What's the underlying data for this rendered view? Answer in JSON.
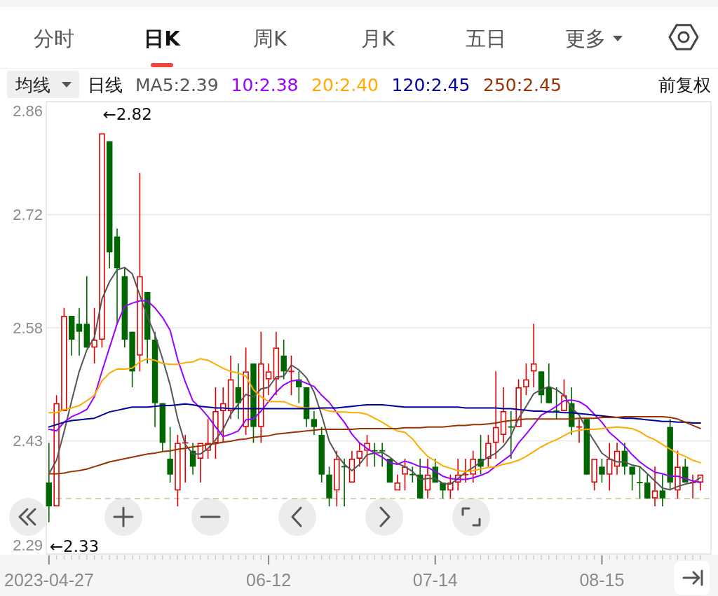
{
  "chart_data": {
    "type": "candlestick",
    "categories": [
      "2023-04-27",
      null,
      null,
      null,
      null,
      null,
      null,
      null,
      null,
      null,
      null,
      null,
      null,
      null,
      null,
      null,
      null,
      null,
      null,
      null,
      null,
      null,
      null,
      null,
      null,
      null,
      null,
      null,
      null,
      "06-12",
      null,
      null,
      null,
      null,
      null,
      null,
      null,
      null,
      null,
      null,
      null,
      null,
      null,
      null,
      null,
      null,
      null,
      null,
      null,
      null,
      null,
      "07-14",
      null,
      null,
      null,
      null,
      null,
      null,
      null,
      null,
      null,
      null,
      null,
      null,
      null,
      null,
      null,
      null,
      null,
      null,
      null,
      null,
      null,
      "08-15",
      null,
      null,
      null,
      null,
      null,
      null,
      null,
      null,
      null,
      null,
      null,
      null,
      null
    ],
    "ohlc": [
      [
        2.38,
        2.43,
        2.33,
        2.35
      ],
      [
        2.35,
        2.49,
        2.35,
        2.48
      ],
      [
        2.47,
        2.6,
        2.47,
        2.59
      ],
      [
        2.59,
        2.59,
        2.54,
        2.56
      ],
      [
        2.58,
        2.6,
        2.54,
        2.57
      ],
      [
        2.58,
        2.64,
        2.55,
        2.55
      ],
      [
        2.55,
        2.6,
        2.53,
        2.56
      ],
      [
        2.56,
        2.82,
        2.55,
        2.82
      ],
      [
        2.81,
        2.81,
        2.65,
        2.67
      ],
      [
        2.69,
        2.7,
        2.58,
        2.65
      ],
      [
        2.64,
        2.65,
        2.55,
        2.56
      ],
      [
        2.57,
        2.57,
        2.5,
        2.52
      ],
      [
        2.54,
        2.77,
        2.52,
        2.64
      ],
      [
        2.62,
        2.62,
        2.53,
        2.56
      ],
      [
        2.56,
        2.57,
        2.45,
        2.48
      ],
      [
        2.48,
        2.48,
        2.42,
        2.43
      ],
      [
        2.41,
        2.45,
        2.38,
        2.39
      ],
      [
        2.37,
        2.44,
        2.35,
        2.43
      ],
      [
        2.43,
        2.44,
        2.38,
        2.43
      ],
      [
        2.42,
        2.43,
        2.39,
        2.4
      ],
      [
        2.41,
        2.43,
        2.38,
        2.43
      ],
      [
        2.42,
        2.46,
        2.41,
        2.43
      ],
      [
        2.43,
        2.5,
        2.41,
        2.47
      ],
      [
        2.47,
        2.5,
        2.43,
        2.48
      ],
      [
        2.47,
        2.54,
        2.46,
        2.51
      ],
      [
        2.5,
        2.53,
        2.46,
        2.48
      ],
      [
        2.45,
        2.55,
        2.44,
        2.52
      ],
      [
        2.53,
        2.53,
        2.43,
        2.45
      ],
      [
        2.45,
        2.57,
        2.43,
        2.53
      ],
      [
        2.51,
        2.53,
        2.49,
        2.52
      ],
      [
        2.51,
        2.57,
        2.49,
        2.55
      ],
      [
        2.54,
        2.56,
        2.51,
        2.52
      ],
      [
        2.52,
        2.54,
        2.49,
        2.52
      ],
      [
        2.51,
        2.52,
        2.48,
        2.5
      ],
      [
        2.5,
        2.5,
        2.45,
        2.46
      ],
      [
        2.46,
        2.47,
        2.44,
        2.45
      ],
      [
        2.44,
        2.45,
        2.38,
        2.39
      ],
      [
        2.39,
        2.4,
        2.35,
        2.36
      ],
      [
        2.37,
        2.42,
        2.35,
        2.41
      ],
      [
        2.4,
        2.41,
        2.35,
        2.4
      ],
      [
        2.38,
        2.42,
        2.38,
        2.41
      ],
      [
        2.41,
        2.43,
        2.4,
        2.42
      ],
      [
        2.42,
        2.44,
        2.4,
        2.43
      ],
      [
        2.42,
        2.43,
        2.4,
        2.42
      ],
      [
        2.42,
        2.43,
        2.4,
        2.42
      ],
      [
        2.41,
        2.41,
        2.38,
        2.38
      ],
      [
        2.37,
        2.39,
        2.37,
        2.38
      ],
      [
        2.39,
        2.41,
        2.37,
        2.4
      ],
      [
        2.39,
        2.4,
        2.38,
        2.39
      ],
      [
        2.39,
        2.41,
        2.36,
        2.36
      ],
      [
        2.37,
        2.41,
        2.36,
        2.39
      ],
      [
        2.4,
        2.41,
        2.38,
        2.38
      ],
      [
        2.38,
        2.38,
        2.36,
        2.37
      ],
      [
        2.37,
        2.39,
        2.36,
        2.38
      ],
      [
        2.38,
        2.41,
        2.37,
        2.39
      ],
      [
        2.39,
        2.41,
        2.38,
        2.39
      ],
      [
        2.39,
        2.42,
        2.38,
        2.41
      ],
      [
        2.41,
        2.44,
        2.39,
        2.4
      ],
      [
        2.41,
        2.44,
        2.4,
        2.43
      ],
      [
        2.43,
        2.52,
        2.41,
        2.45
      ],
      [
        2.44,
        2.5,
        2.43,
        2.47
      ],
      [
        2.45,
        2.47,
        2.41,
        2.45
      ],
      [
        2.45,
        2.51,
        2.45,
        2.5
      ],
      [
        2.5,
        2.53,
        2.49,
        2.51
      ],
      [
        2.52,
        2.58,
        2.5,
        2.53
      ],
      [
        2.52,
        2.52,
        2.48,
        2.49
      ],
      [
        2.5,
        2.53,
        2.48,
        2.48
      ],
      [
        2.47,
        2.5,
        2.46,
        2.47
      ],
      [
        2.47,
        2.51,
        2.47,
        2.49
      ],
      [
        2.48,
        2.5,
        2.44,
        2.45
      ],
      [
        2.45,
        2.46,
        2.43,
        2.45
      ],
      [
        2.46,
        2.46,
        2.39,
        2.39
      ],
      [
        2.38,
        2.41,
        2.37,
        2.41
      ],
      [
        2.4,
        2.41,
        2.38,
        2.39
      ],
      [
        2.39,
        2.43,
        2.37,
        2.41
      ],
      [
        2.4,
        2.43,
        2.39,
        2.42
      ],
      [
        2.42,
        2.43,
        2.39,
        2.4
      ],
      [
        2.4,
        2.4,
        2.37,
        2.39
      ],
      [
        2.38,
        2.4,
        2.36,
        2.38
      ],
      [
        2.38,
        2.39,
        2.36,
        2.36
      ],
      [
        2.36,
        2.4,
        2.35,
        2.37
      ],
      [
        2.37,
        2.39,
        2.35,
        2.36
      ],
      [
        2.45,
        2.46,
        2.37,
        2.38
      ],
      [
        2.37,
        2.42,
        2.36,
        2.4
      ],
      [
        2.4,
        2.41,
        2.38,
        2.38
      ],
      [
        2.38,
        2.39,
        2.36,
        2.38
      ],
      [
        2.38,
        2.39,
        2.37,
        2.39
      ]
    ],
    "colors": [
      "#006600",
      "#dd0000",
      "#dd0000",
      "#006600",
      "#006600",
      "#006600",
      "#dd0000",
      "#dd0000",
      "#006600",
      "#006600",
      "#006600",
      "#006600",
      "#dd0000",
      "#006600",
      "#006600",
      "#006600",
      "#006600",
      "#dd0000",
      "#dd0000",
      "#006600",
      "#dd0000",
      "#dd0000",
      "#dd0000",
      "#dd0000",
      "#dd0000",
      "#006600",
      "#dd0000",
      "#006600",
      "#dd0000",
      "#dd0000",
      "#dd0000",
      "#006600",
      "#dd0000",
      "#006600",
      "#006600",
      "#006600",
      "#006600",
      "#006600",
      "#dd0000",
      "#006600",
      "#dd0000",
      "#dd0000",
      "#dd0000",
      "#006600",
      "#006600",
      "#006600",
      "#dd0000",
      "#dd0000",
      "#006600",
      "#006600",
      "#dd0000",
      "#006600",
      "#006600",
      "#dd0000",
      "#dd0000",
      "#dd0000",
      "#dd0000",
      "#006600",
      "#dd0000",
      "#dd0000",
      "#dd0000",
      "#006600",
      "#dd0000",
      "#dd0000",
      "#dd0000",
      "#006600",
      "#006600",
      "#006600",
      "#dd0000",
      "#006600",
      "#dd0000",
      "#006600",
      "#dd0000",
      "#006600",
      "#dd0000",
      "#dd0000",
      "#006600",
      "#006600",
      "#006600",
      "#006600",
      "#dd0000",
      "#006600",
      "#006600",
      "#dd0000",
      "#006600",
      "#dd0000",
      "#dd0000"
    ],
    "series": [
      {
        "type": "line",
        "name": "MA5:2.39",
        "color": "#555555",
        "values": [
          2.391,
          2.408,
          2.444,
          2.483,
          2.52,
          2.547,
          2.563,
          2.611,
          2.633,
          2.648,
          2.651,
          2.643,
          2.616,
          2.589,
          2.566,
          2.536,
          2.503,
          2.46,
          2.428,
          2.416,
          2.416,
          2.423,
          2.434,
          2.447,
          2.466,
          2.479,
          2.491,
          2.488,
          2.498,
          2.5,
          2.513,
          2.514,
          2.528,
          2.522,
          2.512,
          2.494,
          2.465,
          2.432,
          2.415,
          2.403,
          2.395,
          2.403,
          2.415,
          2.417,
          2.418,
          2.412,
          2.404,
          2.4,
          2.394,
          2.384,
          2.385,
          2.385,
          2.379,
          2.378,
          2.385,
          2.393,
          2.399,
          2.406,
          2.412,
          2.417,
          2.426,
          2.439,
          2.461,
          2.476,
          2.492,
          2.497,
          2.501,
          2.497,
          2.49,
          2.474,
          2.465,
          2.447,
          2.432,
          2.417,
          2.41,
          2.406,
          2.406,
          2.402,
          2.4,
          2.391,
          2.382,
          2.373,
          2.371,
          2.375,
          2.378,
          2.38,
          2.386
        ]
      },
      {
        "type": "line",
        "name": "10:2.38",
        "color": "#9900ff",
        "values": [
          2.447,
          2.445,
          2.456,
          2.463,
          2.467,
          2.472,
          2.488,
          2.52,
          2.55,
          2.58,
          2.602,
          2.606,
          2.609,
          2.609,
          2.6,
          2.588,
          2.572,
          2.535,
          2.507,
          2.483,
          2.474,
          2.463,
          2.45,
          2.438,
          2.441,
          2.445,
          2.459,
          2.46,
          2.47,
          2.482,
          2.494,
          2.503,
          2.508,
          2.509,
          2.505,
          2.501,
          2.49,
          2.481,
          2.468,
          2.456,
          2.441,
          2.43,
          2.423,
          2.417,
          2.412,
          2.405,
          2.403,
          2.407,
          2.404,
          2.4,
          2.399,
          2.394,
          2.388,
          2.385,
          2.384,
          2.384,
          2.386,
          2.389,
          2.393,
          2.401,
          2.408,
          2.415,
          2.43,
          2.441,
          2.453,
          2.465,
          2.47,
          2.476,
          2.483,
          2.484,
          2.482,
          2.476,
          2.466,
          2.456,
          2.443,
          2.435,
          2.426,
          2.415,
          2.406,
          2.399,
          2.393,
          2.391,
          2.388,
          2.388,
          2.385,
          2.382,
          2.38
        ]
      },
      {
        "type": "line",
        "name": "20:2.40",
        "color": "#ffaa00",
        "values": [
          2.468,
          2.468,
          2.472,
          2.474,
          2.477,
          2.483,
          2.49,
          2.508,
          2.518,
          2.523,
          2.523,
          2.524,
          2.532,
          2.536,
          2.534,
          2.53,
          2.529,
          2.529,
          2.531,
          2.532,
          2.536,
          2.534,
          2.529,
          2.524,
          2.52,
          2.518,
          2.514,
          2.497,
          2.488,
          2.482,
          2.482,
          2.482,
          2.478,
          2.475,
          2.474,
          2.474,
          2.473,
          2.47,
          2.469,
          2.469,
          2.468,
          2.468,
          2.466,
          2.461,
          2.456,
          2.45,
          2.445,
          2.443,
          2.435,
          2.423,
          2.413,
          2.407,
          2.401,
          2.398,
          2.395,
          2.394,
          2.395,
          2.397,
          2.399,
          2.4,
          2.403,
          2.405,
          2.408,
          2.413,
          2.419,
          2.425,
          2.43,
          2.434,
          2.439,
          2.444,
          2.446,
          2.447,
          2.447,
          2.448,
          2.449,
          2.45,
          2.449,
          2.448,
          2.444,
          2.438,
          2.434,
          2.428,
          2.422,
          2.417,
          2.413,
          2.408,
          2.405
        ]
      },
      {
        "type": "line",
        "name": "120:2.45",
        "color": "#000099",
        "values": [
          2.45,
          2.453,
          2.456,
          2.458,
          2.459,
          2.46,
          2.461,
          2.465,
          2.469,
          2.471,
          2.473,
          2.475,
          2.475,
          2.475,
          2.476,
          2.477,
          2.477,
          2.478,
          2.479,
          2.478,
          2.476,
          2.475,
          2.474,
          2.474,
          2.473,
          2.473,
          2.473,
          2.473,
          2.473,
          2.473,
          2.473,
          2.473,
          2.473,
          2.473,
          2.473,
          2.473,
          2.474,
          2.474,
          2.474,
          2.475,
          2.476,
          2.477,
          2.478,
          2.478,
          2.478,
          2.477,
          2.476,
          2.475,
          2.475,
          2.475,
          2.475,
          2.475,
          2.475,
          2.475,
          2.475,
          2.474,
          2.474,
          2.474,
          2.474,
          2.474,
          2.473,
          2.473,
          2.472,
          2.471,
          2.47,
          2.47,
          2.469,
          2.469,
          2.468,
          2.468,
          2.467,
          2.466,
          2.465,
          2.464,
          2.463,
          2.462,
          2.461,
          2.461,
          2.46,
          2.459,
          2.458,
          2.457,
          2.457,
          2.456,
          2.456,
          2.455,
          2.455
        ]
      },
      {
        "type": "line",
        "name": "250:2.45",
        "color": "#993300",
        "values": [
          2.391,
          2.391,
          2.392,
          2.394,
          2.395,
          2.397,
          2.4,
          2.403,
          2.406,
          2.408,
          2.41,
          2.412,
          2.414,
          2.416,
          2.417,
          2.419,
          2.42,
          2.422,
          2.423,
          2.425,
          2.426,
          2.428,
          2.429,
          2.431,
          2.432,
          2.434,
          2.435,
          2.437,
          2.438,
          2.439,
          2.441,
          2.442,
          2.443,
          2.444,
          2.445,
          2.446,
          2.447,
          2.447,
          2.447,
          2.447,
          2.447,
          2.448,
          2.448,
          2.448,
          2.448,
          2.448,
          2.448,
          2.449,
          2.449,
          2.449,
          2.45,
          2.45,
          2.45,
          2.451,
          2.452,
          2.452,
          2.453,
          2.453,
          2.454,
          2.455,
          2.457,
          2.458,
          2.459,
          2.46,
          2.46,
          2.46,
          2.46,
          2.46,
          2.46,
          2.46,
          2.461,
          2.461,
          2.461,
          2.462,
          2.462,
          2.462,
          2.463,
          2.463,
          2.463,
          2.463,
          2.463,
          2.463,
          2.462,
          2.46,
          2.456,
          2.452,
          2.448
        ]
      }
    ],
    "ylim": [
      2.29,
      2.86
    ],
    "yticks": [
      2.29,
      {
        "value": 2.4325,
        "label": "2.43"
      },
      {
        "value": 2.575,
        "label": "2.58"
      },
      {
        "value": 2.7175,
        "label": "2.72"
      },
      2.86
    ],
    "grid": "y",
    "legend": "top",
    "legend_title": "日线",
    "ref_lines": [
      {
        "axis": "y",
        "value": 2.36,
        "color": "#e2c29e",
        "line_style": "dashed"
      }
    ],
    "annotations": [
      {
        "text": "←2.33",
        "x": "2023-04-27",
        "y": 2.33
      },
      "←2.82",
      "分时",
      "日K",
      "周K",
      "月K",
      "五日",
      "更多",
      "均线",
      "前复权"
    ]
  }
}
